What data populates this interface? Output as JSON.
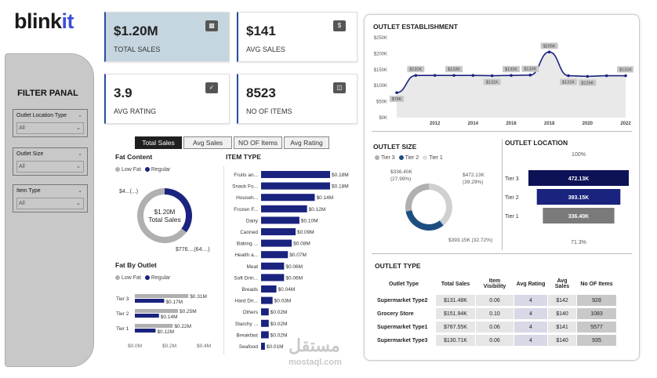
{
  "logo": {
    "text_a": "blink",
    "text_b": "it"
  },
  "filter": {
    "title": "FILTER PANAL",
    "slicers": [
      {
        "label": "Outlet Location Type",
        "value": "All"
      },
      {
        "label": "Outlet Size",
        "value": "All"
      },
      {
        "label": "Item Type",
        "value": "All"
      }
    ]
  },
  "kpis": [
    {
      "value": "$1.20M",
      "label": "TOTAL SALES",
      "icon": "bar-chart-icon"
    },
    {
      "value": "$141",
      "label": "AVG SALES",
      "icon": "money-bag-icon"
    },
    {
      "value": "3.9",
      "label": "AVG RATING",
      "icon": "check-badge-icon"
    },
    {
      "value": "8523",
      "label": "NO OF ITEMS",
      "icon": "basket-icon"
    }
  ],
  "tabs": [
    {
      "label": "Total Sales",
      "active": true
    },
    {
      "label": "Avg Sales",
      "active": false
    },
    {
      "label": "NO OF Items",
      "active": false
    },
    {
      "label": "Avg Rating",
      "active": false
    }
  ],
  "colors": {
    "navy": "#1a237e",
    "dark_navy": "#0d1257",
    "blue": "#1c4e80",
    "grey": "#b0b0b0",
    "light_grey": "#d0d0d0"
  },
  "chart_data": [
    {
      "id": "fat_content",
      "type": "pie",
      "title": "Fat Content",
      "legend": [
        "Low Fat",
        "Regular"
      ],
      "center_value": "$1.20M",
      "center_label": "Total Sales",
      "slices": [
        {
          "name": "Low Fat",
          "value": 776,
          "label": "$776....(64....)"
        },
        {
          "name": "Regular",
          "value": 425,
          "label": "$4...(...)"
        }
      ]
    },
    {
      "id": "item_type",
      "type": "bar",
      "title": "ITEM TYPE",
      "orientation": "horizontal",
      "categories": [
        "Fruits an...",
        "Snack Fo...",
        "Househ...",
        "Frozen F...",
        "Dairy",
        "Canned",
        "Baking ...",
        "Health a...",
        "Meat",
        "Soft Drin...",
        "Breads",
        "Hard Dri...",
        "Others",
        "Starchy ...",
        "Breakfast",
        "Seafood"
      ],
      "values": [
        0.18,
        0.18,
        0.14,
        0.12,
        0.1,
        0.09,
        0.08,
        0.07,
        0.06,
        0.06,
        0.04,
        0.03,
        0.02,
        0.02,
        0.02,
        0.01
      ],
      "labels": [
        "$0.18M",
        "$0.18M",
        "$0.14M",
        "$0.12M",
        "$0.10M",
        "$0.09M",
        "$0.08M",
        "$0.07M",
        "$0.06M",
        "$0.06M",
        "$0.04M",
        "$0.03M",
        "$0.02M",
        "$0.02M",
        "$0.02M",
        "$0.01M"
      ]
    },
    {
      "id": "fat_by_outlet",
      "type": "bar",
      "title": "Fat By Outlet",
      "orientation": "horizontal",
      "legend": [
        "Low Fat",
        "Regular"
      ],
      "categories": [
        "Tier 3",
        "Tier 2",
        "Tier 1"
      ],
      "series": [
        {
          "name": "Low Fat",
          "values": [
            0.31,
            0.25,
            0.22
          ],
          "labels": [
            "$0.31M",
            "$0.25M",
            "$0.22M"
          ]
        },
        {
          "name": "Regular",
          "values": [
            0.17,
            0.14,
            0.12
          ],
          "labels": [
            "$0.17M",
            "$0.14M",
            "$0.12M"
          ]
        }
      ],
      "xticks": [
        "$0.0M",
        "$0.2M",
        "$0.4M"
      ],
      "xlim": [
        0,
        0.4
      ]
    },
    {
      "id": "outlet_establishment",
      "type": "area",
      "title": "OUTLET ESTABLISHMENT",
      "x": [
        2010,
        2011,
        2012,
        2013,
        2014,
        2015,
        2016,
        2017,
        2018,
        2019,
        2020,
        2021,
        2022
      ],
      "y": [
        78,
        132,
        132,
        132,
        132,
        131,
        132,
        133,
        205,
        131,
        129,
        131,
        131
      ],
      "point_labels": [
        "$78K",
        "$132K",
        "",
        "$132K",
        "",
        "$131K",
        "$132K",
        "$133K",
        "$205K",
        "$131K",
        "$129K",
        "",
        "$131K"
      ],
      "xticks": [
        "2012",
        "2014",
        "2016",
        "2018",
        "2020",
        "2022"
      ],
      "yticks": [
        "$0K",
        "$50K",
        "$100K",
        "$150K",
        "$200K",
        "$250K"
      ],
      "ylim": [
        0,
        250
      ]
    },
    {
      "id": "outlet_size",
      "type": "pie",
      "title": "OUTLET SIZE",
      "legend": [
        "Tier 3",
        "Tier 2",
        "Tier 1"
      ],
      "slices": [
        {
          "name": "Tier 3",
          "value": 336.4,
          "label": "$336.40K",
          "pct": "(27.99%)"
        },
        {
          "name": "Tier 2",
          "value": 393.15,
          "label": "$393.15K (32.72%)"
        },
        {
          "name": "Tier 1",
          "value": 472.13,
          "label": "$472.13K",
          "pct": "(39.29%)"
        }
      ]
    },
    {
      "id": "outlet_location",
      "type": "bar",
      "title": "OUTLET LOCATION",
      "orientation": "funnel",
      "categories": [
        "Tier 3",
        "Tier 2",
        "Tier 1"
      ],
      "values": [
        472.13,
        393.15,
        336.4
      ],
      "labels": [
        "472.13K",
        "393.15K",
        "336.40K"
      ],
      "top_pct": "100%",
      "bottom_pct": "71.3%"
    }
  ],
  "outlet_type": {
    "title": "OUTLET TYPE",
    "headers": [
      "Outlet Type",
      "Total Sales",
      "Item Visibility",
      "Avg Rating",
      "Avg Sales",
      "No OF Items"
    ],
    "rows": [
      [
        "Supermarket Type2",
        "$131.48K",
        "0.06",
        "4",
        "$142",
        "928"
      ],
      [
        "Grocery Store",
        "$151.94K",
        "0.10",
        "4",
        "$140",
        "1083"
      ],
      [
        "Supermarket Type1",
        "$787.55K",
        "0.06",
        "4",
        "$141",
        "5577"
      ],
      [
        "Supermarket Type3",
        "$130.71K",
        "0.06",
        "4",
        "$140",
        "935"
      ]
    ]
  },
  "watermark": {
    "arabic": "مستقل",
    "latin": "mostaql.com"
  }
}
